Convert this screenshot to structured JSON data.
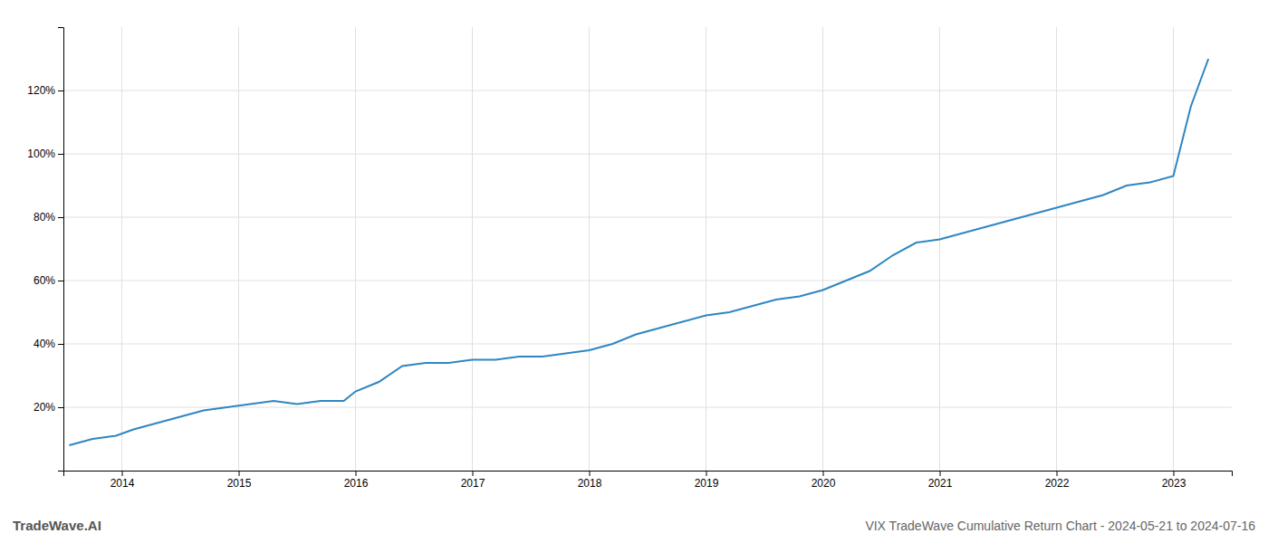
{
  "chart_data": {
    "type": "line",
    "title": "VIX TradeWave Cumulative Return Chart - 2024-05-21 to 2024-07-16",
    "annotations": [
      "TradeWave.AI"
    ],
    "color": "#2e86c1",
    "x": [
      2013.55,
      2013.65,
      2013.75,
      2013.85,
      2013.95,
      2014.1,
      2014.3,
      2014.5,
      2014.7,
      2014.9,
      2015.1,
      2015.3,
      2015.5,
      2015.7,
      2015.9,
      2016.0,
      2016.2,
      2016.4,
      2016.6,
      2016.8,
      2017.0,
      2017.2,
      2017.4,
      2017.6,
      2017.8,
      2018.0,
      2018.2,
      2018.4,
      2018.6,
      2018.8,
      2019.0,
      2019.2,
      2019.4,
      2019.6,
      2019.8,
      2020.0,
      2020.2,
      2020.4,
      2020.6,
      2020.8,
      2021.0,
      2021.2,
      2021.4,
      2021.6,
      2021.8,
      2022.0,
      2022.2,
      2022.4,
      2022.6,
      2022.8,
      2023.0,
      2023.15,
      2023.3
    ],
    "values": [
      8,
      9,
      10,
      10.5,
      11,
      13,
      15,
      17,
      19,
      20,
      21,
      22,
      21,
      22,
      22,
      25,
      28,
      33,
      34,
      34,
      35,
      35,
      36,
      36,
      37,
      38,
      40,
      43,
      45,
      47,
      49,
      50,
      52,
      54,
      55,
      57,
      60,
      63,
      68,
      72,
      73,
      75,
      77,
      79,
      81,
      83,
      85,
      87,
      90,
      91,
      93,
      115,
      130
    ],
    "xlim": [
      2013.5,
      2023.5
    ],
    "xticks": [
      2014,
      2015,
      2016,
      2017,
      2018,
      2019,
      2020,
      2021,
      2022,
      2023
    ],
    "ylim": [
      0,
      140
    ],
    "yticks": [
      {
        "value": 20,
        "label": "20%"
      },
      {
        "value": 40,
        "label": "40%"
      },
      {
        "value": 60,
        "label": "60%"
      },
      {
        "value": 80,
        "label": "80%"
      },
      {
        "value": 100,
        "label": "100%"
      },
      {
        "value": 120,
        "label": "120%"
      }
    ],
    "grid": true
  }
}
